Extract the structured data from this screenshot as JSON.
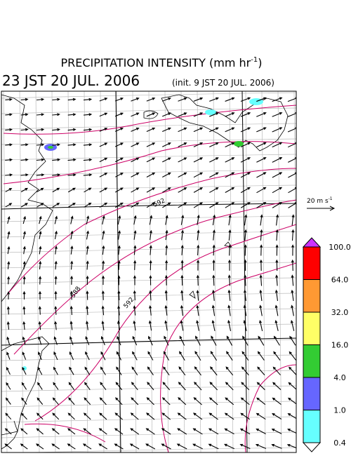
{
  "header": {
    "title": "PRECIPITATION INTENSITY (mm hr",
    "title_exponent": "-1",
    "title_close": ")",
    "valid_time": "23 JST 20 JUL. 2006",
    "init_time": "(init. 9 JST 20 JUL. 2006)"
  },
  "reference_vector": {
    "label": "20 m s",
    "exponent": "-1"
  },
  "colorbar": {
    "labels": [
      "100.0",
      "64.0",
      "32.0",
      "16.0",
      "4.0",
      "1.0",
      "0.4"
    ],
    "colors": [
      "#cc33ff",
      "#ff0000",
      "#ff9933",
      "#ffff66",
      "#33cc33",
      "#6666ff",
      "#66ffff",
      "#ffffff"
    ]
  },
  "contour_labels": [
    "588",
    "592",
    "592"
  ]
}
